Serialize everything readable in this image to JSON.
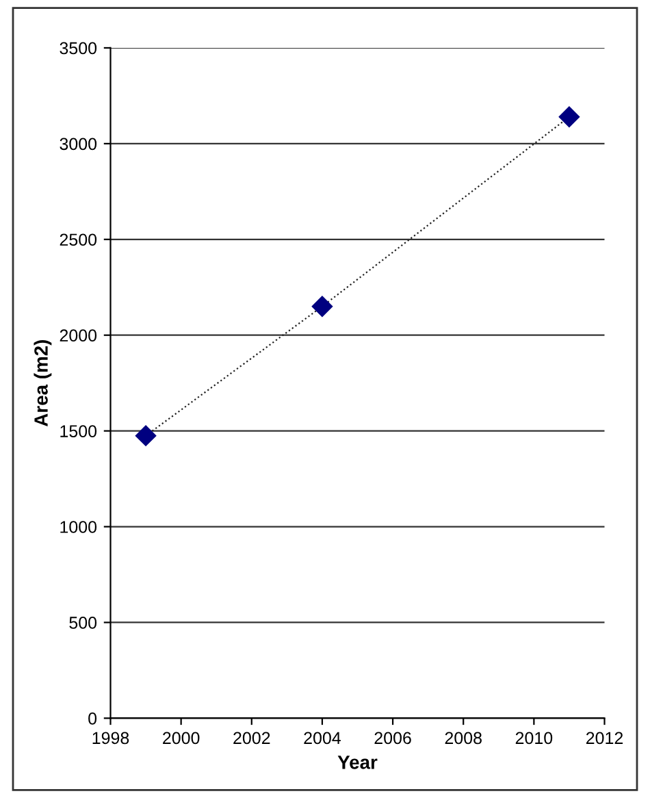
{
  "chart_data": {
    "type": "line",
    "xlabel": "Year",
    "ylabel": "Area (m2)",
    "x": [
      1999,
      2004,
      2011
    ],
    "series": [
      {
        "color": "#000080",
        "values": [
          1475,
          2150,
          3140
        ]
      }
    ],
    "xlim": [
      1998,
      2012
    ],
    "xticks": [
      1998,
      2000,
      2002,
      2004,
      2006,
      2008,
      2010,
      2012
    ],
    "ylim": [
      0,
      3500
    ],
    "yticks": [
      0,
      500,
      1000,
      1500,
      2000,
      2500,
      3000,
      3500
    ],
    "grid": "y",
    "marker": "diamond",
    "line_style": "dotted"
  }
}
